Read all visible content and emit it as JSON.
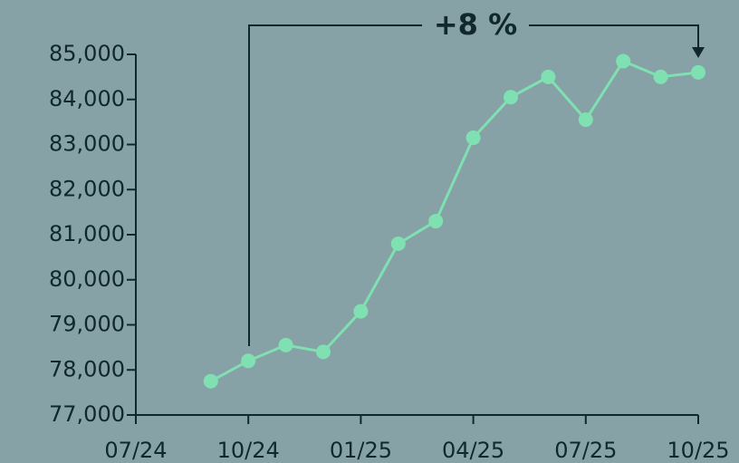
{
  "chart_data": {
    "type": "line",
    "annotation": "+8 %",
    "x": [
      "09/24",
      "10/24",
      "11/24",
      "12/24",
      "01/25",
      "02/25",
      "03/25",
      "04/25",
      "05/25",
      "06/25",
      "07/25",
      "08/25",
      "09/25",
      "10/25"
    ],
    "series": [
      {
        "color": "#7fe0b2",
        "values": [
          77750,
          78200,
          78550,
          78400,
          79300,
          80800,
          81300,
          83150,
          84050,
          84500,
          83550,
          84850,
          84500,
          84600
        ]
      }
    ],
    "xlim": [
      "07/24",
      "10/25"
    ],
    "xticks": [
      "07/24",
      "10/24",
      "01/25",
      "04/25",
      "07/25",
      "10/25"
    ],
    "ylim": [
      77000,
      85000
    ],
    "yticks": [
      {
        "value": 77000,
        "label": "77,000"
      },
      {
        "value": 78000,
        "label": "78,000"
      },
      {
        "value": 79000,
        "label": "79,000"
      },
      {
        "value": 80000,
        "label": "80,000"
      },
      {
        "value": 81000,
        "label": "81,000"
      },
      {
        "value": 82000,
        "label": "82,000"
      },
      {
        "value": 83000,
        "label": "83,000"
      },
      {
        "value": 84000,
        "label": "84,000"
      },
      {
        "value": 85000,
        "label": "85,000"
      }
    ]
  }
}
